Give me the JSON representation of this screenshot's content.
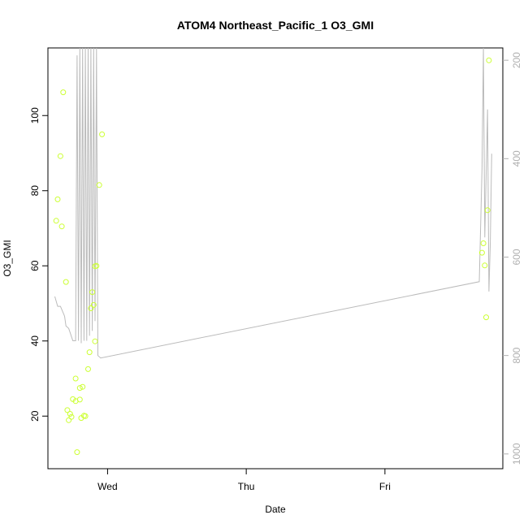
{
  "chart_data": {
    "type": "scatter",
    "title": "ATOM4 Northeast_Pacific_1 O3_GMI",
    "xlabel": "Date",
    "ylabel": "O3_GMI",
    "x_tick_labels": [
      "Wed",
      "Thu",
      "Fri"
    ],
    "x_tick_positions": [
      0.0,
      1.0,
      2.0
    ],
    "xlim": [
      -0.43,
      2.85
    ],
    "ylim": [
      6.0,
      118.0
    ],
    "y_ticks": [
      20,
      40,
      60,
      80,
      100
    ],
    "y2_lim": [
      1030.0,
      175.0
    ],
    "y2_ticks": [
      200,
      400,
      600,
      800,
      1000
    ],
    "grid": false,
    "colors": {
      "points": "#ccff33",
      "line": "#bbbbbb",
      "axis": "#000000",
      "right_axis": "#b0b0b0"
    },
    "series": [
      {
        "type": "points",
        "axis": "left",
        "x": [
          -0.37,
          -0.36,
          -0.34,
          -0.32,
          -0.33,
          -0.3,
          -0.29,
          -0.28,
          -0.27,
          -0.26,
          -0.25,
          -0.23,
          -0.23,
          -0.22,
          -0.2,
          -0.2,
          -0.19,
          -0.18,
          -0.17,
          -0.16,
          -0.14,
          -0.13,
          -0.12,
          -0.11,
          -0.1,
          -0.09,
          -0.09,
          -0.08,
          -0.06,
          -0.04,
          2.7,
          2.71,
          2.72,
          2.73,
          2.74,
          2.75
        ],
        "y": [
          72.0,
          77.7,
          89.2,
          106.2,
          70.5,
          55.7,
          21.6,
          18.9,
          20.6,
          19.8,
          24.5,
          30.0,
          24.0,
          10.4,
          24.4,
          27.5,
          19.5,
          27.8,
          20.1,
          20.0,
          32.5,
          37.0,
          48.7,
          53.0,
          49.6,
          59.9,
          39.9,
          60.0,
          81.5,
          95.0,
          63.5,
          66.0,
          60.1,
          46.3,
          74.8,
          114.7
        ]
      },
      {
        "type": "line",
        "axis": "right",
        "x": [
          -0.38,
          -0.36,
          -0.34,
          -0.31,
          -0.3,
          -0.28,
          -0.25,
          -0.23,
          -0.22,
          -0.21,
          -0.2,
          -0.19,
          -0.18,
          -0.17,
          -0.16,
          -0.15,
          -0.14,
          -0.13,
          -0.12,
          -0.11,
          -0.1,
          -0.09,
          -0.08,
          -0.07,
          -0.05,
          2.68,
          2.7,
          2.71,
          2.72,
          2.73,
          2.74,
          2.75,
          2.76,
          2.77
        ],
        "y": [
          680,
          700,
          700,
          720,
          740,
          745,
          770,
          770,
          190,
          770,
          175,
          775,
          175,
          770,
          175,
          770,
          175,
          760,
          175,
          750,
          175,
          730,
          175,
          800,
          805,
          650,
          420,
          175,
          560,
          430,
          300,
          670,
          570,
          390
        ]
      }
    ]
  }
}
